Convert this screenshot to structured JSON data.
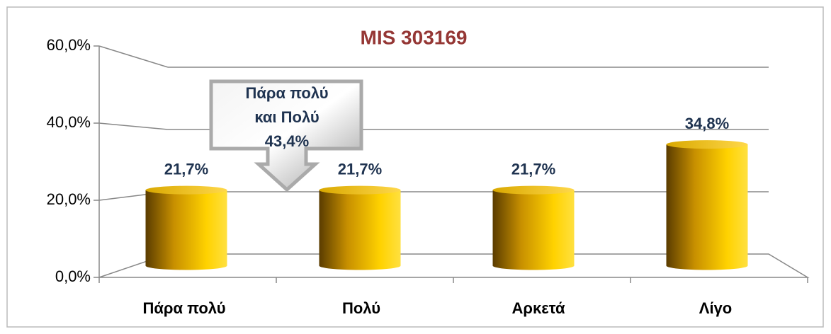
{
  "chart_data": {
    "type": "bar3d",
    "title": "MIS 303169",
    "categories": [
      "Πάρα πολύ",
      "Πολύ",
      "Αρκετά",
      "Λίγο"
    ],
    "values": [
      21.7,
      21.7,
      21.7,
      34.8
    ],
    "value_labels": [
      "21,7%",
      "21,7%",
      "21,7%",
      "34,8%"
    ],
    "color": "#ffcc00",
    "ylim": [
      0,
      60
    ],
    "yticks": [
      {
        "value": 0,
        "label": "0,0%"
      },
      {
        "value": 20,
        "label": "20,0%"
      },
      {
        "value": 40,
        "label": "40,0%"
      },
      {
        "value": 60,
        "label": "60,0%"
      }
    ],
    "grid": true,
    "annotation": {
      "lines": [
        "Πάρα πολύ",
        "και Πολύ",
        "43,4%"
      ]
    }
  }
}
